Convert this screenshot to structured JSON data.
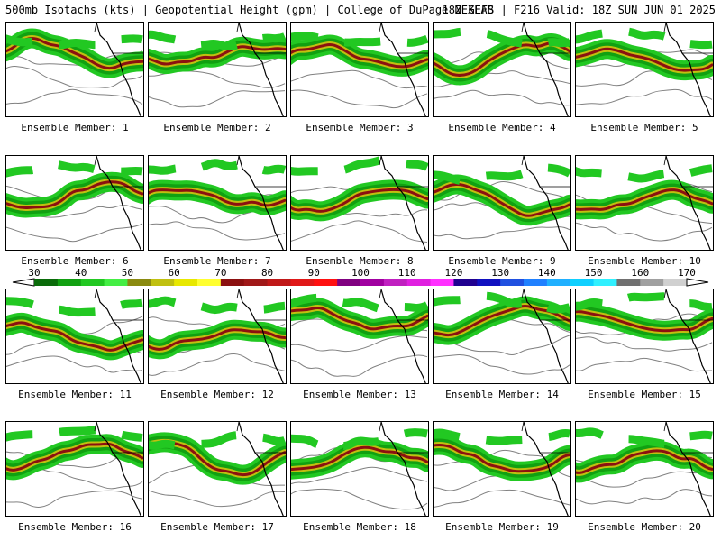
{
  "header": {
    "left": "500mb Isotachs (kts) | Geopotential Height (gpm) | College of DuPage NEXLAB",
    "right": "18Z GEFS | F216 Valid: 18Z SUN JUN 01 2025"
  },
  "panels": [
    {
      "label": "Ensemble Member: 1"
    },
    {
      "label": "Ensemble Member: 2"
    },
    {
      "label": "Ensemble Member: 3"
    },
    {
      "label": "Ensemble Member: 4"
    },
    {
      "label": "Ensemble Member: 5"
    },
    {
      "label": "Ensemble Member: 6"
    },
    {
      "label": "Ensemble Member: 7"
    },
    {
      "label": "Ensemble Member: 8"
    },
    {
      "label": "Ensemble Member: 9"
    },
    {
      "label": "Ensemble Member: 10"
    },
    {
      "label": "Ensemble Member: 11"
    },
    {
      "label": "Ensemble Member: 12"
    },
    {
      "label": "Ensemble Member: 13"
    },
    {
      "label": "Ensemble Member: 14"
    },
    {
      "label": "Ensemble Member: 15"
    },
    {
      "label": "Ensemble Member: 16"
    },
    {
      "label": "Ensemble Member: 17"
    },
    {
      "label": "Ensemble Member: 18"
    },
    {
      "label": "Ensemble Member: 19"
    },
    {
      "label": "Ensemble Member: 20"
    }
  ],
  "colorbar": {
    "labels": [
      "30",
      "40",
      "50",
      "60",
      "70",
      "80",
      "90",
      "100",
      "110",
      "120",
      "130",
      "140",
      "150",
      "160",
      "170"
    ],
    "colors": [
      "#0a6b0a",
      "#11a011",
      "#22c822",
      "#44ee44",
      "#8a8a10",
      "#c0c010",
      "#e8e800",
      "#ffff30",
      "#8b1010",
      "#a01818",
      "#c01818",
      "#e01818",
      "#ff1010",
      "#800080",
      "#a000a0",
      "#c020c0",
      "#e020e0",
      "#ff30ff",
      "#200090",
      "#1010c0",
      "#2050e0",
      "#2080ff",
      "#20b0ff",
      "#10d0ff",
      "#30f0ff",
      "#707070",
      "#a0a0a0",
      "#d0d0d0"
    ]
  },
  "colors": {
    "jet_light": "#22c822",
    "jet_mid": "#11a011",
    "jet_core": "#c0c010",
    "jet_max": "#8b1010",
    "height_contour": "#808080",
    "coast": "#000000"
  }
}
